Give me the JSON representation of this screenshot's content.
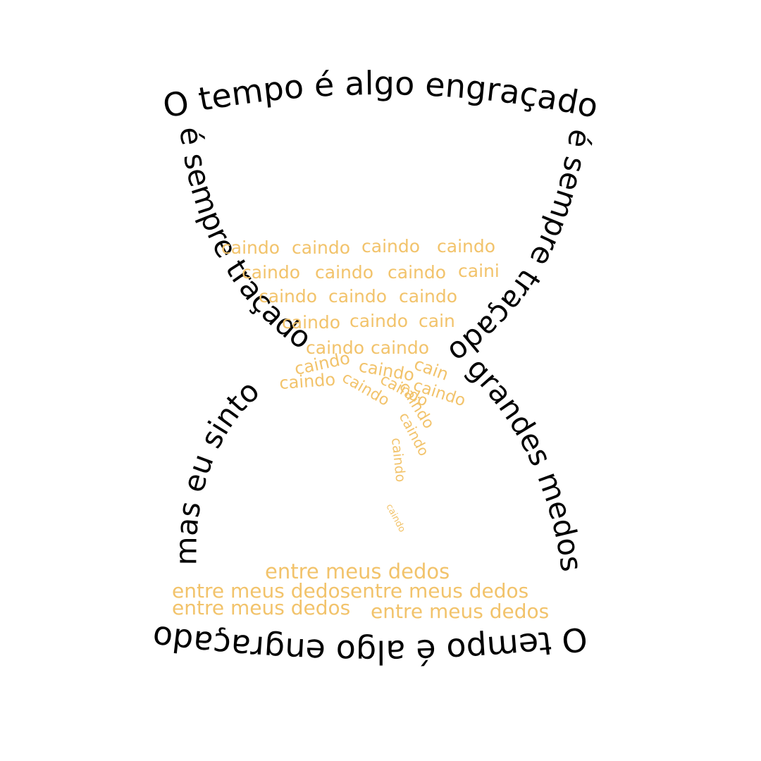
{
  "poem": {
    "top_line": "O tempo é algo engraçado",
    "bottom_line": "O tempo é algo engraçado",
    "left_upper": "é sempre traçado",
    "right_upper": "é sempre traçado",
    "left_lower": "mas eu sinto",
    "right_lower": "grandes medos",
    "falling_word": "caindo",
    "falling_word_cut_1": "caini",
    "falling_word_cut_2": "cain",
    "falling_word_cut_3": "cain",
    "pile_phrase": "entre meus dedos"
  },
  "colors": {
    "ink": "#000000",
    "sand": "#f2c36b",
    "background": "#ffffff"
  }
}
